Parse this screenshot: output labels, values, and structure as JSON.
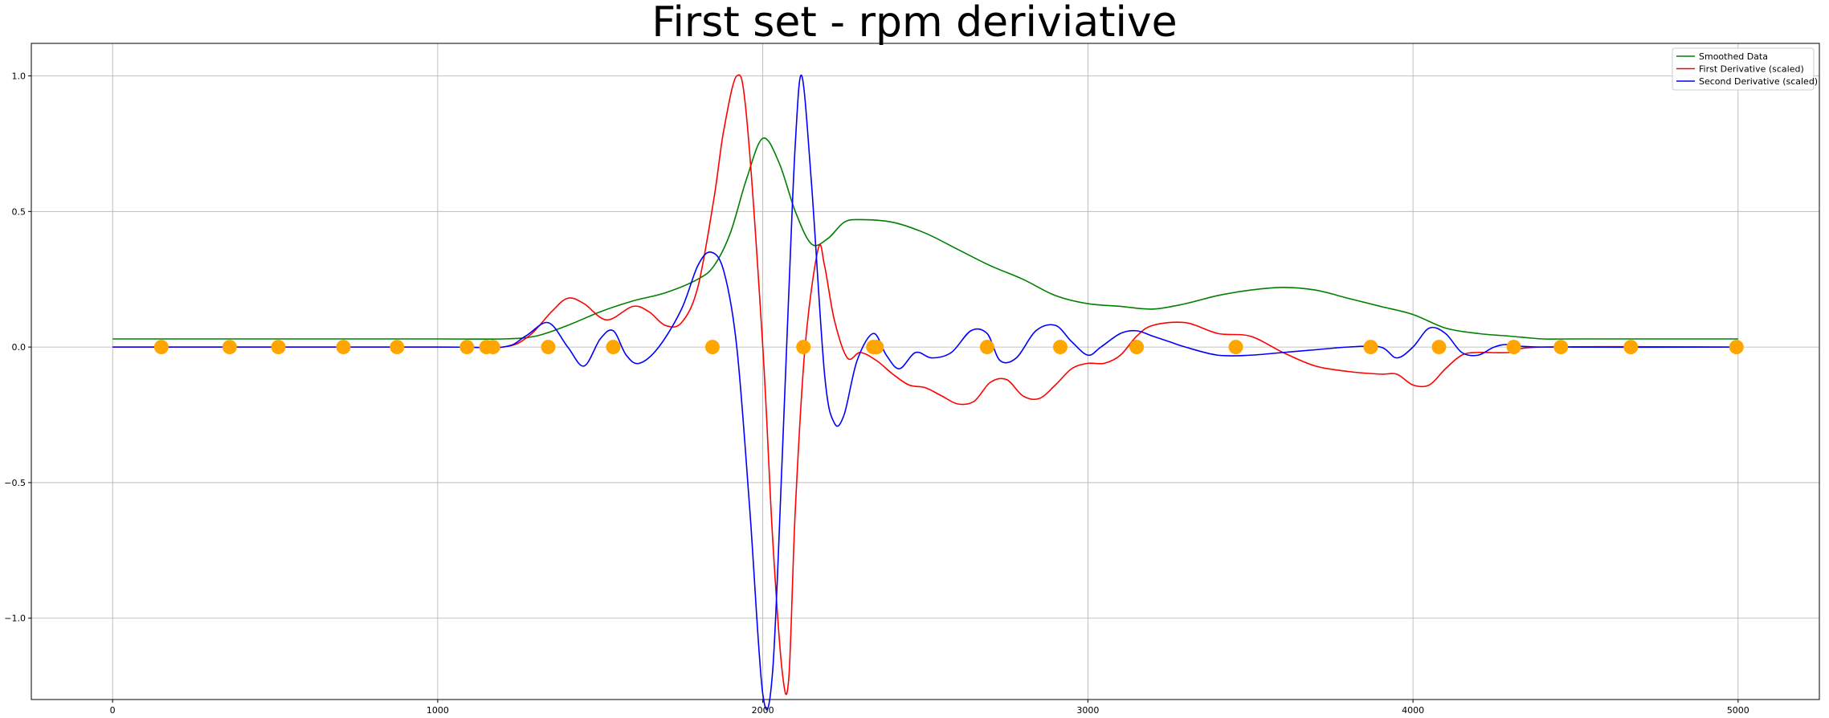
{
  "chart_data": {
    "type": "line",
    "title": "First set - rpm deriviative",
    "xlabel": "",
    "ylabel": "",
    "xlim": [
      -250,
      5250
    ],
    "ylim": [
      -1.3,
      1.12
    ],
    "grid": true,
    "legend_position": "top-right",
    "x_ticks": [
      {
        "value": 0,
        "label": "0"
      },
      {
        "value": 1000,
        "label": "1000"
      },
      {
        "value": 2000,
        "label": "2000"
      },
      {
        "value": 3000,
        "label": "3000"
      },
      {
        "value": 4000,
        "label": "4000"
      },
      {
        "value": 5000,
        "label": "5000"
      }
    ],
    "y_ticks": [
      {
        "value": 1.0,
        "label": "1.0"
      },
      {
        "value": 0.5,
        "label": "0.5"
      },
      {
        "value": 0.0,
        "label": "0.0"
      },
      {
        "value": -0.5,
        "label": "−0.5"
      },
      {
        "value": -1.0,
        "label": "−1.0"
      }
    ],
    "series": [
      {
        "name": "Smoothed Data",
        "color": "#008000",
        "x": [
          0,
          500,
          1000,
          1200,
          1300,
          1400,
          1500,
          1600,
          1700,
          1800,
          1850,
          1900,
          1950,
          2000,
          2050,
          2100,
          2150,
          2200,
          2250,
          2300,
          2400,
          2500,
          2600,
          2700,
          2800,
          2900,
          3000,
          3100,
          3200,
          3300,
          3400,
          3500,
          3600,
          3700,
          3800,
          3900,
          4000,
          4100,
          4200,
          4300,
          4400,
          4500,
          5000
        ],
        "y": [
          0.03,
          0.03,
          0.03,
          0.03,
          0.04,
          0.08,
          0.13,
          0.17,
          0.2,
          0.25,
          0.3,
          0.42,
          0.62,
          0.77,
          0.68,
          0.5,
          0.38,
          0.4,
          0.46,
          0.47,
          0.46,
          0.42,
          0.36,
          0.3,
          0.25,
          0.19,
          0.16,
          0.15,
          0.14,
          0.16,
          0.19,
          0.21,
          0.22,
          0.21,
          0.18,
          0.15,
          0.12,
          0.07,
          0.05,
          0.04,
          0.03,
          0.03,
          0.03
        ]
      },
      {
        "name": "First Derivative (scaled)",
        "color": "#ff0000",
        "x": [
          0,
          1000,
          1200,
          1280,
          1350,
          1400,
          1450,
          1520,
          1600,
          1650,
          1700,
          1750,
          1800,
          1850,
          1880,
          1920,
          1950,
          2000,
          2030,
          2060,
          2080,
          2100,
          2130,
          2170,
          2190,
          2220,
          2260,
          2300,
          2350,
          2400,
          2450,
          2500,
          2550,
          2600,
          2650,
          2700,
          2750,
          2800,
          2850,
          2900,
          2950,
          3000,
          3050,
          3100,
          3150,
          3200,
          3300,
          3400,
          3500,
          3600,
          3700,
          3800,
          3900,
          3950,
          4000,
          4050,
          4100,
          4150,
          4200,
          4300,
          4400,
          5000
        ],
        "y": [
          0.0,
          0.0,
          0.0,
          0.04,
          0.13,
          0.18,
          0.16,
          0.1,
          0.15,
          0.13,
          0.08,
          0.09,
          0.22,
          0.55,
          0.8,
          1.0,
          0.85,
          0.0,
          -0.7,
          -1.2,
          -1.22,
          -0.6,
          0.0,
          0.36,
          0.3,
          0.1,
          -0.04,
          -0.02,
          -0.05,
          -0.1,
          -0.14,
          -0.15,
          -0.18,
          -0.21,
          -0.2,
          -0.13,
          -0.12,
          -0.18,
          -0.19,
          -0.14,
          -0.08,
          -0.06,
          -0.06,
          -0.03,
          0.04,
          0.08,
          0.09,
          0.05,
          0.04,
          -0.02,
          -0.07,
          -0.09,
          -0.1,
          -0.1,
          -0.14,
          -0.14,
          -0.08,
          -0.03,
          -0.02,
          -0.02,
          0.0,
          0.0
        ]
      },
      {
        "name": "Second Derivative (scaled)",
        "color": "#0000ff",
        "x": [
          0,
          1000,
          1200,
          1270,
          1340,
          1400,
          1450,
          1500,
          1540,
          1580,
          1620,
          1680,
          1750,
          1800,
          1840,
          1880,
          1920,
          1960,
          2000,
          2030,
          2060,
          2080,
          2100,
          2120,
          2150,
          2190,
          2220,
          2250,
          2290,
          2340,
          2380,
          2420,
          2470,
          2520,
          2580,
          2640,
          2690,
          2730,
          2780,
          2840,
          2900,
          2950,
          3000,
          3040,
          3100,
          3150,
          3200,
          3250,
          3300,
          3400,
          3500,
          3600,
          3700,
          3800,
          3900,
          3950,
          4000,
          4050,
          4100,
          4150,
          4200,
          4250,
          4300,
          4400,
          5000
        ],
        "y": [
          0.0,
          0.0,
          0.0,
          0.04,
          0.09,
          0.0,
          -0.07,
          0.03,
          0.06,
          -0.03,
          -0.06,
          0.0,
          0.14,
          0.3,
          0.35,
          0.28,
          0.0,
          -0.6,
          -1.28,
          -1.2,
          -0.4,
          0.2,
          0.75,
          1.0,
          0.6,
          -0.1,
          -0.28,
          -0.25,
          -0.05,
          0.05,
          -0.03,
          -0.08,
          -0.02,
          -0.04,
          -0.02,
          0.06,
          0.05,
          -0.05,
          -0.04,
          0.06,
          0.08,
          0.02,
          -0.03,
          0.0,
          0.05,
          0.06,
          0.04,
          0.02,
          0.0,
          -0.03,
          -0.03,
          -0.02,
          -0.01,
          0.0,
          0.0,
          -0.04,
          0.0,
          0.07,
          0.05,
          -0.02,
          -0.03,
          0.0,
          0.01,
          0.0,
          0.0
        ]
      }
    ],
    "markers": {
      "color": "#ffa500",
      "y": 0.0,
      "x": [
        150,
        360,
        510,
        710,
        875,
        1090,
        1150,
        1170,
        1340,
        1540,
        1845,
        2125,
        2340,
        2350,
        2690,
        2915,
        3150,
        3455,
        3870,
        4080,
        4310,
        4455,
        4670,
        4995
      ]
    }
  }
}
